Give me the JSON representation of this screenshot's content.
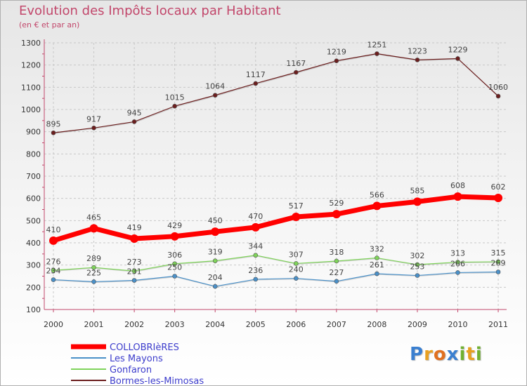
{
  "chart_data": {
    "type": "line",
    "title": "Evolution des Impôts locaux par Habitant",
    "subtitle": "(en € et par an)",
    "x": [
      2000,
      2001,
      2002,
      2003,
      2004,
      2005,
      2006,
      2007,
      2008,
      2009,
      2010,
      2011
    ],
    "ylim": [
      100,
      1300
    ],
    "yticks": [
      100,
      200,
      300,
      400,
      500,
      600,
      700,
      800,
      900,
      1000,
      1100,
      1200,
      1300
    ],
    "grid": true,
    "legend_position": "bottom-left",
    "series": [
      {
        "name": "COLLOBRIèRES",
        "color": "#ff0000",
        "values": [
          410,
          465,
          419,
          429,
          450,
          470,
          517,
          529,
          566,
          585,
          608,
          602
        ]
      },
      {
        "name": "Les Mayons",
        "color": "#4a90c8",
        "values": [
          234,
          225,
          231,
          250,
          204,
          236,
          240,
          227,
          261,
          253,
          266,
          269
        ]
      },
      {
        "name": "Gonfaron",
        "color": "#7fd35a",
        "values": [
          276,
          289,
          273,
          306,
          319,
          344,
          307,
          318,
          332,
          302,
          313,
          315
        ]
      },
      {
        "name": "Bormes-les-Mimosas",
        "color": "#6b1e1e",
        "values": [
          895,
          917,
          945,
          1015,
          1064,
          1117,
          1167,
          1219,
          1251,
          1223,
          1229,
          1060
        ]
      }
    ]
  },
  "logo": {
    "letters": [
      "P",
      "r",
      "o",
      "x",
      "i",
      "t",
      "i"
    ],
    "colors": [
      "#3a7fd0",
      "#e8a020",
      "#e07020",
      "#3a7fd0",
      "#70b030",
      "#e8a020",
      "#70b030"
    ]
  }
}
